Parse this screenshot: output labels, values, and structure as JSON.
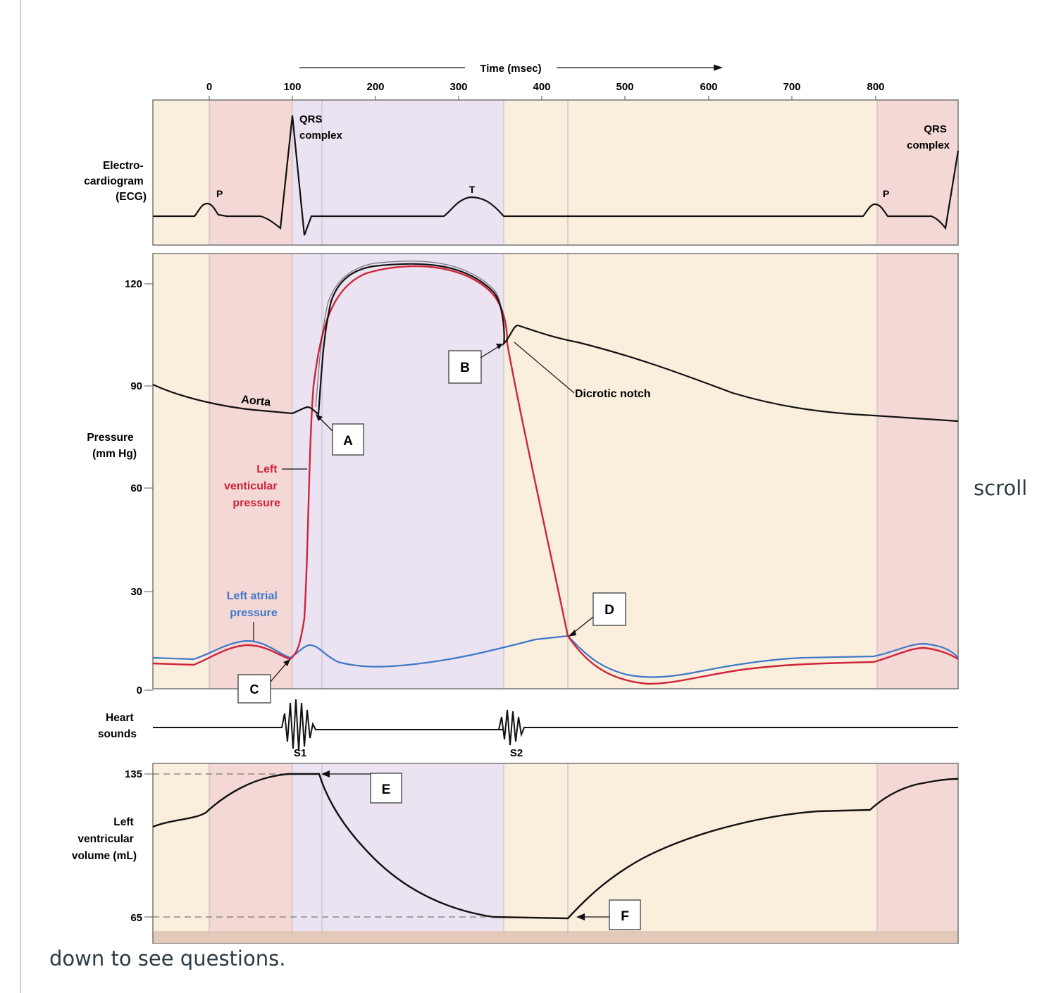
{
  "diagram": {
    "time_axis": {
      "title": "Time (msec)",
      "ticks": [
        "0",
        "100",
        "200",
        "300",
        "400",
        "500",
        "600",
        "700",
        "800"
      ]
    },
    "ecg": {
      "label_lines": [
        "Electro-",
        "cardiogram",
        "(ECG)"
      ],
      "qrs_label_lines": [
        "QRS",
        "complex"
      ],
      "qrs_label_right_lines": [
        "QRS",
        "complex"
      ],
      "p_label": "P",
      "t_label": "T"
    },
    "pressure": {
      "label_lines": [
        "Pressure",
        "(mm Hg)"
      ],
      "ticks": [
        "120",
        "90",
        "60",
        "30",
        "0"
      ],
      "aorta_label": "Aorta",
      "lvp_label_lines": [
        "Left",
        "venticular",
        "pressure"
      ],
      "lap_label_lines": [
        "Left atrial",
        "pressure"
      ],
      "dicrotic_label": "Dicrotic notch",
      "colors": {
        "aorta": "#111111",
        "lvp": "#d0243a",
        "lap": "#3f78c8"
      }
    },
    "heart_sounds": {
      "label_lines": [
        "Heart",
        "sounds"
      ],
      "s1": "S1",
      "s2": "S2"
    },
    "volume": {
      "label_lines": [
        "Left",
        "ventricular",
        "volume (mL)"
      ],
      "ticks": [
        "135",
        "65"
      ]
    },
    "markers": [
      "A",
      "B",
      "C",
      "D",
      "E",
      "F"
    ],
    "phase_colors": {
      "atrial": "#f4d8d6",
      "isovolumic": "#ebe3f1",
      "ejection": "#ece4f2",
      "diastole": "#faeedd"
    }
  },
  "page_text": {
    "scroll_word": "scroll",
    "scroll_rest": "down to see questions."
  }
}
